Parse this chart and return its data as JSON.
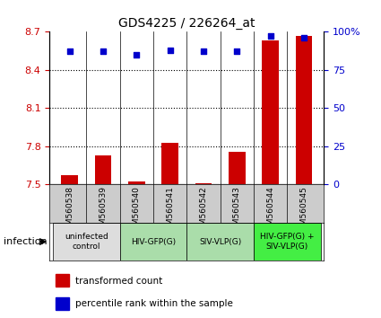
{
  "title": "GDS4225 / 226264_at",
  "samples": [
    "GSM560538",
    "GSM560539",
    "GSM560540",
    "GSM560541",
    "GSM560542",
    "GSM560543",
    "GSM560544",
    "GSM560545"
  ],
  "bar_values": [
    7.57,
    7.73,
    7.52,
    7.83,
    7.51,
    7.76,
    8.63,
    8.67
  ],
  "percentile_values": [
    87,
    87,
    85,
    88,
    87,
    87,
    97,
    96
  ],
  "ylim_left": [
    7.5,
    8.7
  ],
  "ylim_right": [
    0,
    100
  ],
  "yticks_left": [
    7.5,
    7.8,
    8.1,
    8.4,
    8.7
  ],
  "yticks_right": [
    0,
    25,
    50,
    75,
    100
  ],
  "ytick_labels_right": [
    "0",
    "25",
    "50",
    "75",
    "100%"
  ],
  "bar_color": "#cc0000",
  "dot_color": "#0000cc",
  "bar_width": 0.5,
  "groups": [
    {
      "label": "uninfected\ncontrol",
      "start": 0,
      "end": 1,
      "color": "#dddddd"
    },
    {
      "label": "HIV-GFP(G)",
      "start": 2,
      "end": 3,
      "color": "#aaddaa"
    },
    {
      "label": "SIV-VLP(G)",
      "start": 4,
      "end": 5,
      "color": "#aaddaa"
    },
    {
      "label": "HIV-GFP(G) +\nSIV-VLP(G)",
      "start": 6,
      "end": 7,
      "color": "#44ee44"
    }
  ],
  "infection_label": "infection",
  "legend_bar_label": "transformed count",
  "legend_dot_label": "percentile rank within the sample",
  "hline_style": "dotted",
  "hline_color": "black",
  "background_color": "white",
  "xlabel_color": "#cc0000",
  "ylabel_right_color": "#0000cc"
}
